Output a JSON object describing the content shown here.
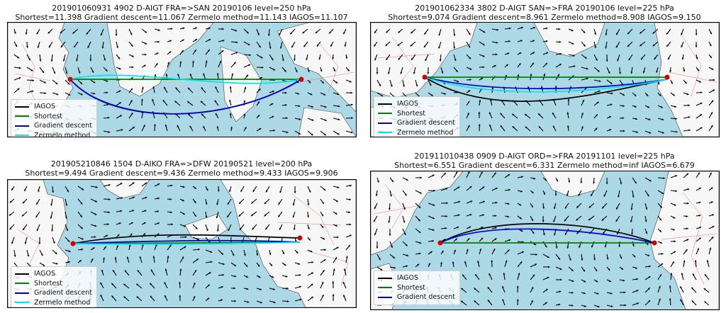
{
  "colors": {
    "ocean": "#add8e6",
    "land": "#f7f7f7",
    "borders": "#e07070",
    "wind_arrow": "#000000",
    "IAGOS": "#000000",
    "Shortest": "#008000",
    "Gradient descent": "#0000cd",
    "Zermelo method": "#00e5ee",
    "airport_marker": "#cc0000"
  },
  "panels": [
    {
      "id": "tl",
      "title_line1": "201901060931 4902 D-AIGT FRA=>SAN  20190106 level=250 hPa",
      "title_line2": "Shortest=11.398 Gradient descent=11.067 Zermelo method=11.143 IAGOS=11.107",
      "legend": [
        "IAGOS",
        "Shortest",
        "Gradient descent",
        "Zermelo method"
      ]
    },
    {
      "id": "tr",
      "title_line1": "201901062334 3802 D-AIGT SAN=>FRA  20190106 level=225 hPa",
      "title_line2": "Shortest=9.074 Gradient descent=8.961 Zermelo method=8.908 IAGOS=9.150",
      "legend": [
        "IAGOS",
        "Shortest",
        "Gradient descent",
        "Zermelo method"
      ]
    },
    {
      "id": "bl",
      "title_line1": "201905210846 1504 D-AIKO FRA=>DFW  20190521 level=200 hPa",
      "title_line2": "Shortest=9.494 Gradient descent=9.436 Zermelo method=9.433 IAGOS=9.906",
      "legend": [
        "IAGOS",
        "Shortest",
        "Gradient descent",
        "Zermelo method"
      ]
    },
    {
      "id": "br",
      "title_line1": "201911010438 0909 D-AIGT ORD=>FRA  20191101 level=225 hPa",
      "title_line2": "Shortest=6.551 Gradient descent=6.331 Zermelo method=inf IAGOS=6.679",
      "legend": [
        "IAGOS",
        "Shortest",
        "Gradient descent"
      ]
    }
  ]
}
